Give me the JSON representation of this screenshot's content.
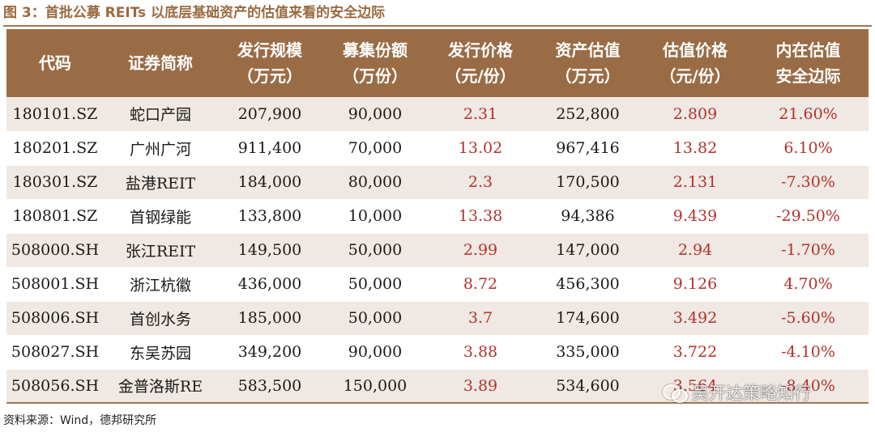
{
  "caption": "图 3：首批公募 REITs 以底层基础资产的估值来看的安全边际",
  "headers": [
    [
      "代码"
    ],
    [
      "证券简称"
    ],
    [
      "发行规模",
      "（万元）"
    ],
    [
      "募集份额",
      "（万份）"
    ],
    [
      "发行价格",
      "（元/份）"
    ],
    [
      "资产估值",
      "（万元）"
    ],
    [
      "估值价格",
      "（元/份）"
    ],
    [
      "内在估值",
      "安全边际"
    ]
  ],
  "rows": [
    [
      "180101.SZ",
      "蛇口产园",
      "207,900",
      "90,000",
      "2.31",
      "252,800",
      "2.809",
      "21.60%"
    ],
    [
      "180201.SZ",
      "广州广河",
      "911,400",
      "70,000",
      "13.02",
      "967,416",
      "13.82",
      "6.10%"
    ],
    [
      "180301.SZ",
      "盐港REIT",
      "184,000",
      "80,000",
      "2.3",
      "170,500",
      "2.131",
      "-7.30%"
    ],
    [
      "180801.SZ",
      "首钢绿能",
      "133,800",
      "10,000",
      "13.38",
      "94,386",
      "9.439",
      "-29.50%"
    ],
    [
      "508000.SH",
      "张江REIT",
      "149,500",
      "50,000",
      "2.99",
      "147,000",
      "2.94",
      "-1.70%"
    ],
    [
      "508001.SH",
      "浙江杭徽",
      "436,000",
      "50,000",
      "8.72",
      "456,300",
      "9.126",
      "4.70%"
    ],
    [
      "508006.SH",
      "首创水务",
      "185,000",
      "50,000",
      "3.7",
      "174,600",
      "3.492",
      "-5.60%"
    ],
    [
      "508027.SH",
      "东吴苏园",
      "349,200",
      "90,000",
      "3.88",
      "335,000",
      "3.722",
      "-4.10%"
    ],
    [
      "508056.SH",
      "金普洛斯RE",
      "583,500",
      "150,000",
      "3.89",
      "534,600",
      "3.564",
      "-8.40%"
    ]
  ],
  "source": "资料来源：Wind，德邦研究所",
  "watermark": "吴开达策略知行",
  "colors": {
    "header_bg": "#9a6c45",
    "stripe": "#f0e8e2",
    "red_text": "#b2322c",
    "caption": "#9b6a3f"
  }
}
